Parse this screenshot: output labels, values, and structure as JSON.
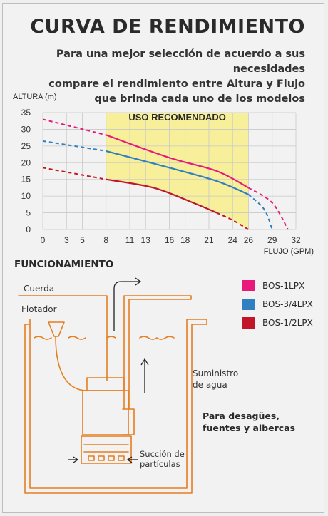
{
  "header": {
    "title": "CURVA DE RENDIMIENTO",
    "subtitle_lines": [
      "Para una mejor selección de acuerdo a sus necesidades",
      "compare el rendimiento entre Altura y Flujo",
      "que brinda cada uno de los modelos"
    ]
  },
  "chart_data": {
    "type": "line",
    "ylabel": "ALTURA (m)",
    "xlabel": "FLUJO (GPM)",
    "x_ticks": [
      0,
      3,
      5,
      8,
      11,
      13,
      16,
      18,
      21,
      24,
      26,
      29,
      32
    ],
    "y_ticks": [
      0,
      5,
      10,
      15,
      20,
      25,
      30,
      35
    ],
    "xlim": [
      0,
      32
    ],
    "ylim": [
      0,
      35
    ],
    "grid": true,
    "recommended_zone": {
      "label": "USO RECOMENDADO",
      "x_range": [
        8,
        26
      ],
      "color": "#f7ef9a"
    },
    "series": [
      {
        "name": "BOS-1LPX",
        "color": "#e8197a",
        "points": [
          [
            0,
            33
          ],
          [
            8,
            28.3
          ],
          [
            16,
            21.5
          ],
          [
            22,
            17.5
          ],
          [
            26,
            12.5
          ],
          [
            29,
            8
          ],
          [
            31,
            0
          ]
        ],
        "recommended_range": [
          8,
          26
        ]
      },
      {
        "name": "BOS-3/4LPX",
        "color": "#2f7fc1",
        "points": [
          [
            0,
            26.5
          ],
          [
            8,
            23.5
          ],
          [
            16,
            18.5
          ],
          [
            22,
            14.5
          ],
          [
            26,
            10.5
          ],
          [
            28,
            6
          ],
          [
            29,
            0
          ]
        ],
        "recommended_range": [
          8,
          26
        ]
      },
      {
        "name": "BOS-1/2LPX",
        "color": "#c1162a",
        "points": [
          [
            0,
            18.5
          ],
          [
            8,
            15
          ],
          [
            14,
            12.5
          ],
          [
            19,
            8
          ],
          [
            22,
            5
          ],
          [
            24,
            2.8
          ],
          [
            26,
            0
          ]
        ],
        "recommended_range": [
          8,
          22
        ]
      }
    ]
  },
  "functioning": {
    "title": "FUNCIONAMIENTO",
    "labels": {
      "rope": "Cuerda",
      "float": "Flotador",
      "supply": [
        "Suministro",
        "de agua"
      ],
      "suction": [
        "Succión de",
        "partículas"
      ]
    },
    "description": [
      "Para desagües,",
      "fuentes y albercas"
    ],
    "accent_color": "#e67e22"
  }
}
